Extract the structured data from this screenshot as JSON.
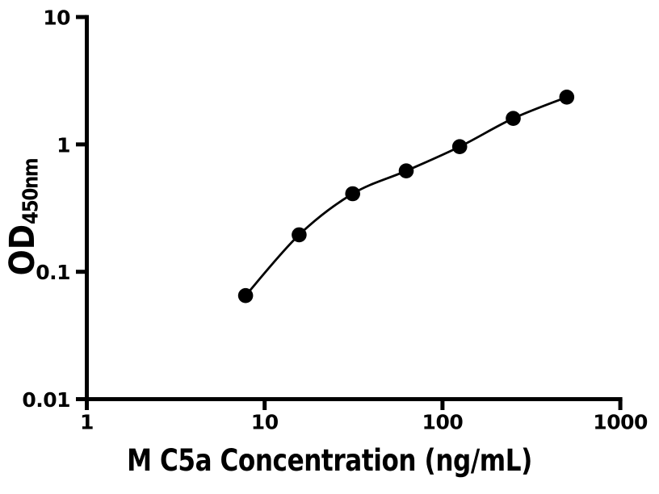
{
  "figure": {
    "background": "#ffffff",
    "foreground": "#000000"
  },
  "chart_data": {
    "type": "scatter",
    "title": "",
    "xlabel": "M C5a Concentration (ng/mL)",
    "ylabel": "OD450nm",
    "ylabel_main": "OD",
    "ylabel_sub": "450nm",
    "x_scale": "log",
    "y_scale": "log",
    "xlim": [
      1,
      1000
    ],
    "ylim": [
      0.01,
      10
    ],
    "x_ticks": [
      "1",
      "10",
      "100",
      "1000"
    ],
    "y_ticks": [
      "0.01",
      "0.1",
      "1",
      "10"
    ],
    "grid": false,
    "legend": false,
    "marker_color": "#000000",
    "line_color": "#000000",
    "curve_style": "smooth-fit",
    "series": [
      {
        "points": [
          {
            "x": 7.8125,
            "y": 0.065
          },
          {
            "x": 15.625,
            "y": 0.195
          },
          {
            "x": 31.25,
            "y": 0.41
          },
          {
            "x": 62.5,
            "y": 0.62
          },
          {
            "x": 125,
            "y": 0.96
          },
          {
            "x": 250,
            "y": 1.6
          },
          {
            "x": 500,
            "y": 2.35
          }
        ]
      }
    ]
  }
}
